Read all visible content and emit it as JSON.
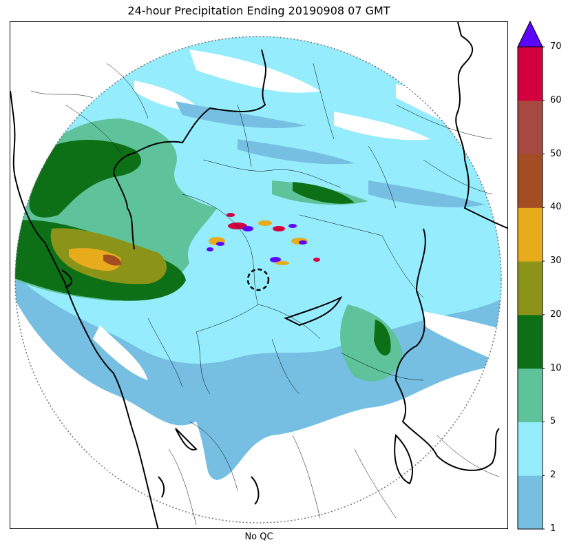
{
  "title": "24-hour Precipitation Ending 20190908 07 GMT",
  "xlabel": "No QC",
  "colorbar": {
    "ticks": [
      "1",
      "2",
      "5",
      "10",
      "20",
      "30",
      "40",
      "50",
      "60",
      "70"
    ],
    "colors": [
      "#76bfe3",
      "#95ecfc",
      "#5ec29a",
      "#0d7016",
      "#8b9419",
      "#e8ab1b",
      "#a24e22",
      "#a64940",
      "#d2003f"
    ],
    "extend_color": "#5b06fa"
  }
}
